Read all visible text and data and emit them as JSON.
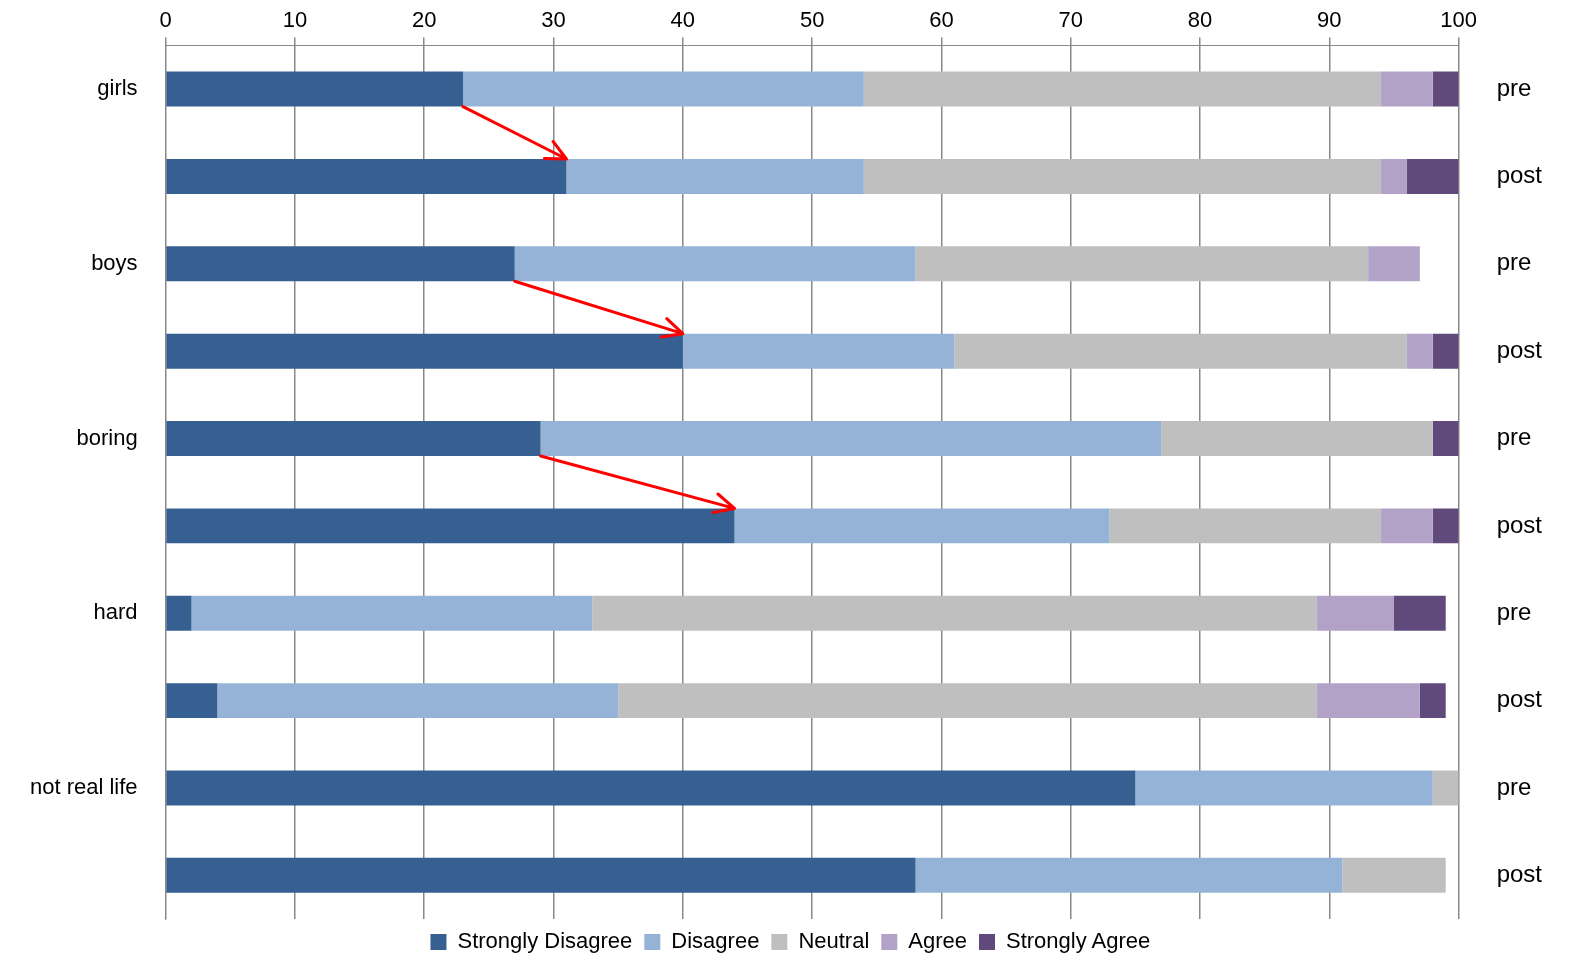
{
  "chart_data": {
    "type": "bar",
    "orientation": "horizontal",
    "stacked": true,
    "categories": [
      "girls",
      null,
      "boys",
      null,
      "boring",
      null,
      "hard",
      null,
      "not real life",
      null
    ],
    "y2_categories": [
      "pre",
      "post",
      "pre",
      "post",
      "pre",
      "post",
      "pre",
      "post",
      "pre",
      "post"
    ],
    "series": [
      {
        "name": "Strongly Disagree",
        "color": "#366092",
        "values": [
          23,
          31,
          27,
          40,
          29,
          44,
          2,
          4,
          75,
          58
        ]
      },
      {
        "name": "Disagree",
        "color": "#95b3d7",
        "values": [
          31,
          23,
          31,
          21,
          48,
          29,
          31,
          31,
          23,
          33
        ]
      },
      {
        "name": "Neutral",
        "color": "#bfbfbf",
        "values": [
          40,
          40,
          35,
          35,
          21,
          21,
          56,
          54,
          2,
          8
        ]
      },
      {
        "name": "Agree",
        "color": "#b3a2c7",
        "values": [
          4,
          2,
          4,
          2,
          0,
          4,
          6,
          8,
          0,
          0
        ]
      },
      {
        "name": "Strongly Agree",
        "color": "#604a7b",
        "values": [
          2,
          4,
          0,
          2,
          2,
          2,
          4,
          2,
          0,
          0
        ]
      }
    ],
    "xlim": [
      0,
      100
    ],
    "xticks": [
      0,
      10,
      20,
      30,
      40,
      50,
      60,
      70,
      80,
      90,
      100
    ],
    "grid": "x",
    "legend": "bottom"
  }
}
